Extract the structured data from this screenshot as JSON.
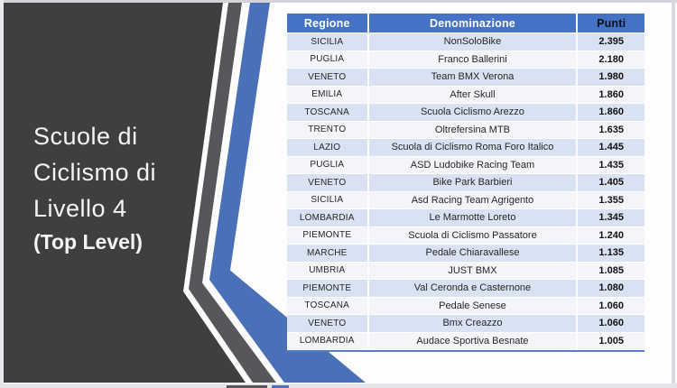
{
  "slide": {
    "title_lines": [
      "Scuole di",
      "Ciclismo di",
      "Livello 4"
    ],
    "subtitle": "(Top Level)"
  },
  "table": {
    "columns": [
      "Regione",
      "Denominazione",
      "Punti"
    ],
    "rows": [
      {
        "regione": "SICILIA",
        "denominazione": "NonSoloBike",
        "punti": "2.395"
      },
      {
        "regione": "PUGLIA",
        "denominazione": "Franco Ballerini",
        "punti": "2.180"
      },
      {
        "regione": "VENETO",
        "denominazione": "Team BMX Verona",
        "punti": "1.980"
      },
      {
        "regione": "EMILIA",
        "denominazione": "After Skull",
        "punti": "1.860"
      },
      {
        "regione": "TOSCANA",
        "denominazione": "Scuola Ciclismo Arezzo",
        "punti": "1.860"
      },
      {
        "regione": "TRENTO",
        "denominazione": "Oltrefersina MTB",
        "punti": "1.635"
      },
      {
        "regione": "LAZIO",
        "denominazione": "Scuola di Ciclismo Roma Foro Italico",
        "punti": "1.445"
      },
      {
        "regione": "PUGLIA",
        "denominazione": "ASD Ludobike Racing Team",
        "punti": "1.435"
      },
      {
        "regione": "VENETO",
        "denominazione": "Bike Park Barbieri",
        "punti": "1.405"
      },
      {
        "regione": "SICILIA",
        "denominazione": "Asd Racing Team Agrigento",
        "punti": "1.355"
      },
      {
        "regione": "LOMBARDIA",
        "denominazione": "Le Marmotte Loreto",
        "punti": "1.345"
      },
      {
        "regione": "PIEMONTE",
        "denominazione": "Scuola di Ciclismo Passatore",
        "punti": "1.240"
      },
      {
        "regione": "MARCHE",
        "denominazione": "Pedale Chiaravallese",
        "punti": "1.135"
      },
      {
        "regione": "UMBRIA",
        "denominazione": "JUST BMX",
        "punti": "1.085"
      },
      {
        "regione": "PIEMONTE",
        "denominazione": "Val Ceronda e Casternone",
        "punti": "1.080"
      },
      {
        "regione": "TOSCANA",
        "denominazione": "Pedale Senese",
        "punti": "1.060"
      },
      {
        "regione": "VENETO",
        "denominazione": "Bmx Creazzo",
        "punti": "1.060"
      },
      {
        "regione": "LOMBARDIA",
        "denominazione": "Audace Sportiva Besnate",
        "punti": "1.005"
      }
    ]
  },
  "colors": {
    "header_bg": "#4472C4",
    "band_row": "#D9E2F3",
    "plain_row": "#F3F5FB",
    "panel_dark": "#3F3F41",
    "stripe_gray": "#56575A",
    "stripe_blue": "#4A70B8",
    "table_border": "#5A7BBD"
  }
}
